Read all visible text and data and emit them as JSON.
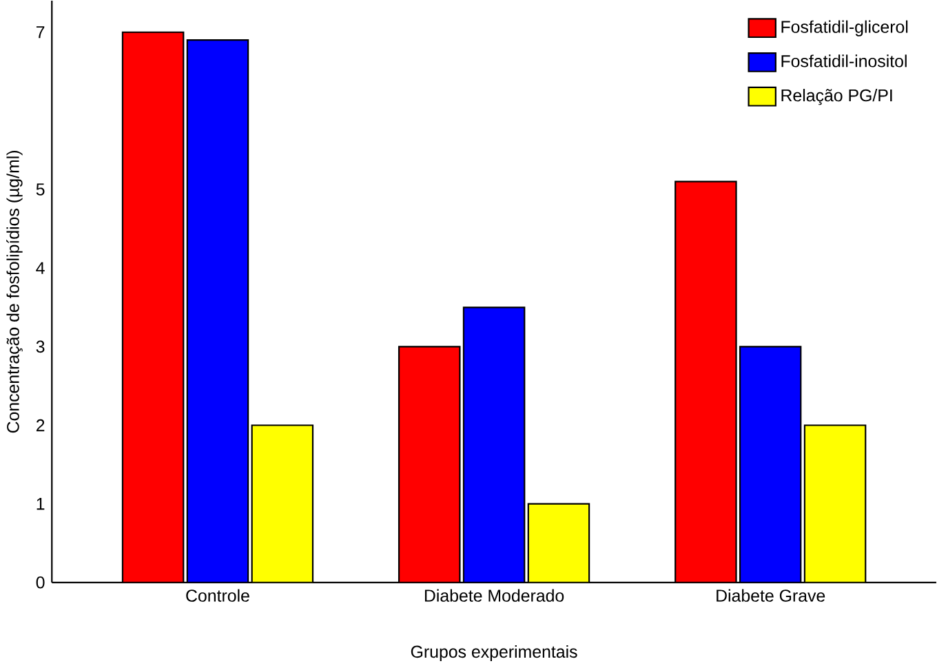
{
  "chart_data": {
    "type": "bar",
    "xlabel": "Grupos experimentais",
    "ylabel": "Concentração de fosfolipídios (µg/ml)",
    "categories": [
      "Controle",
      "Diabete Moderado",
      "Diabete Grave"
    ],
    "series": [
      {
        "name": "Fosfatidil-glicerol",
        "color": "#ff0000",
        "values": [
          7,
          3,
          5.1
        ]
      },
      {
        "name": "Fosfatidil-inositol",
        "color": "#0000ff",
        "values": [
          6.9,
          3.5,
          3
        ]
      },
      {
        "name": "Relação PG/PI",
        "color": "#ffff00",
        "values": [
          2,
          1,
          2
        ]
      }
    ],
    "ylim": [
      0,
      7.4
    ],
    "yticks": [
      0,
      1,
      2,
      3,
      4,
      5,
      7
    ],
    "grid": false,
    "legend": "top right"
  }
}
